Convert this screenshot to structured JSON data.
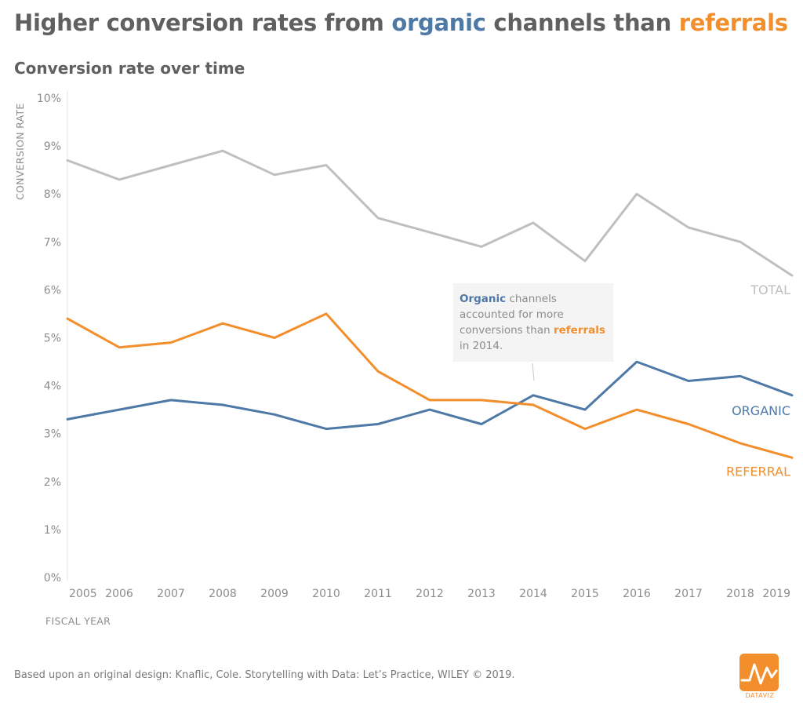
{
  "title": {
    "prefix": "Higher conversion rates from ",
    "organic": "organic",
    "middle": " channels than ",
    "referrals": "referrals"
  },
  "subtitle": "Conversion rate over time",
  "callout": {
    "organic": "Organic",
    "text1": " channels accounted for more conversions than ",
    "referrals": "referrals",
    "text2": " in 2014."
  },
  "footer": "Based upon an original design: Knaflic, Cole. Storytelling with Data: Let’s Practice, WILEY © 2019.",
  "logo_text": "DATAVIZ",
  "colors": {
    "total": "#bfbfbf",
    "organic": "#4e79a7",
    "referral": "#f28e2b",
    "text": "#5f6062",
    "axis": "#8c8c8c"
  },
  "chart_data": {
    "type": "line",
    "x": [
      2005,
      2006,
      2007,
      2008,
      2009,
      2010,
      2011,
      2012,
      2013,
      2014,
      2015,
      2016,
      2017,
      2018,
      2019
    ],
    "x_tick_labels": [
      "2005",
      "2006",
      "2007",
      "2008",
      "2009",
      "2010",
      "2011",
      "2012",
      "2013",
      "2014",
      "2015",
      "2016",
      "2017",
      "2018",
      "2019"
    ],
    "series": [
      {
        "name": "TOTAL",
        "key": "total",
        "values": [
          8.7,
          8.3,
          8.6,
          8.9,
          8.4,
          8.6,
          7.5,
          7.2,
          6.9,
          7.4,
          6.6,
          8.0,
          7.3,
          7.0,
          6.3
        ]
      },
      {
        "name": "ORGANIC",
        "key": "organic",
        "values": [
          3.3,
          3.5,
          3.7,
          3.6,
          3.4,
          3.1,
          3.2,
          3.5,
          3.2,
          3.8,
          3.5,
          4.5,
          4.1,
          4.2,
          3.8
        ]
      },
      {
        "name": "REFERRAL",
        "key": "referral",
        "values": [
          5.4,
          4.8,
          4.9,
          5.3,
          5.0,
          5.5,
          4.3,
          3.7,
          3.7,
          3.6,
          3.1,
          3.5,
          3.2,
          2.8,
          2.5
        ]
      }
    ],
    "y_tick_labels": [
      "0%",
      "1%",
      "2%",
      "3%",
      "4%",
      "5%",
      "6%",
      "7%",
      "8%",
      "9%",
      "10%"
    ],
    "ylim": [
      0,
      10
    ],
    "ylabel": "CONVERSION RATE",
    "xlabel": "FISCAL YEAR",
    "grid": false,
    "legend": "direct labels at line ends"
  }
}
